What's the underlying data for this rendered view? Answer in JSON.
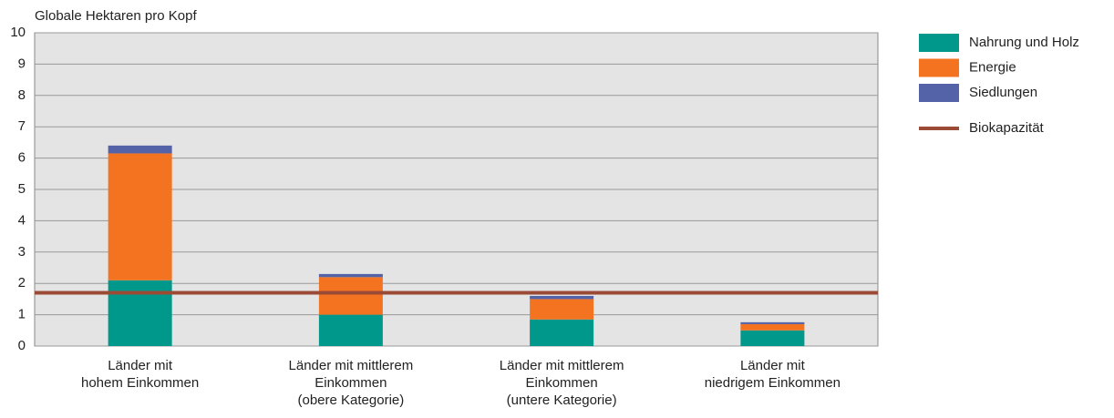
{
  "chart_data": {
    "type": "stacked_bar",
    "y_axis_label": "Globale Hektaren pro Kopf",
    "categories": [
      "Länder mit\nhohem Einkommen",
      "Länder mit mittlerem\nEinkommen\n(obere Kategorie)",
      "Länder mit mittlerem\nEinkommen\n(untere Kategorie)",
      "Länder mit\nniedrigem Einkommen"
    ],
    "series": [
      {
        "name": "Nahrung und Holz",
        "color": "#00988a",
        "values": [
          2.1,
          1.0,
          0.85,
          0.5
        ]
      },
      {
        "name": "Energie",
        "color": "#f47321",
        "values": [
          4.05,
          1.2,
          0.65,
          0.2
        ]
      },
      {
        "name": "Siedlungen",
        "color": "#5462a8",
        "values": [
          0.25,
          0.1,
          0.1,
          0.06
        ]
      }
    ],
    "reference_line": {
      "name": "Biokapazität",
      "value": 1.7,
      "color": "#9b4a35"
    },
    "ylim": [
      0,
      10
    ],
    "yticks": [
      0,
      1,
      2,
      3,
      4,
      5,
      6,
      7,
      8,
      9,
      10
    ],
    "grid": true,
    "legend": "right"
  }
}
